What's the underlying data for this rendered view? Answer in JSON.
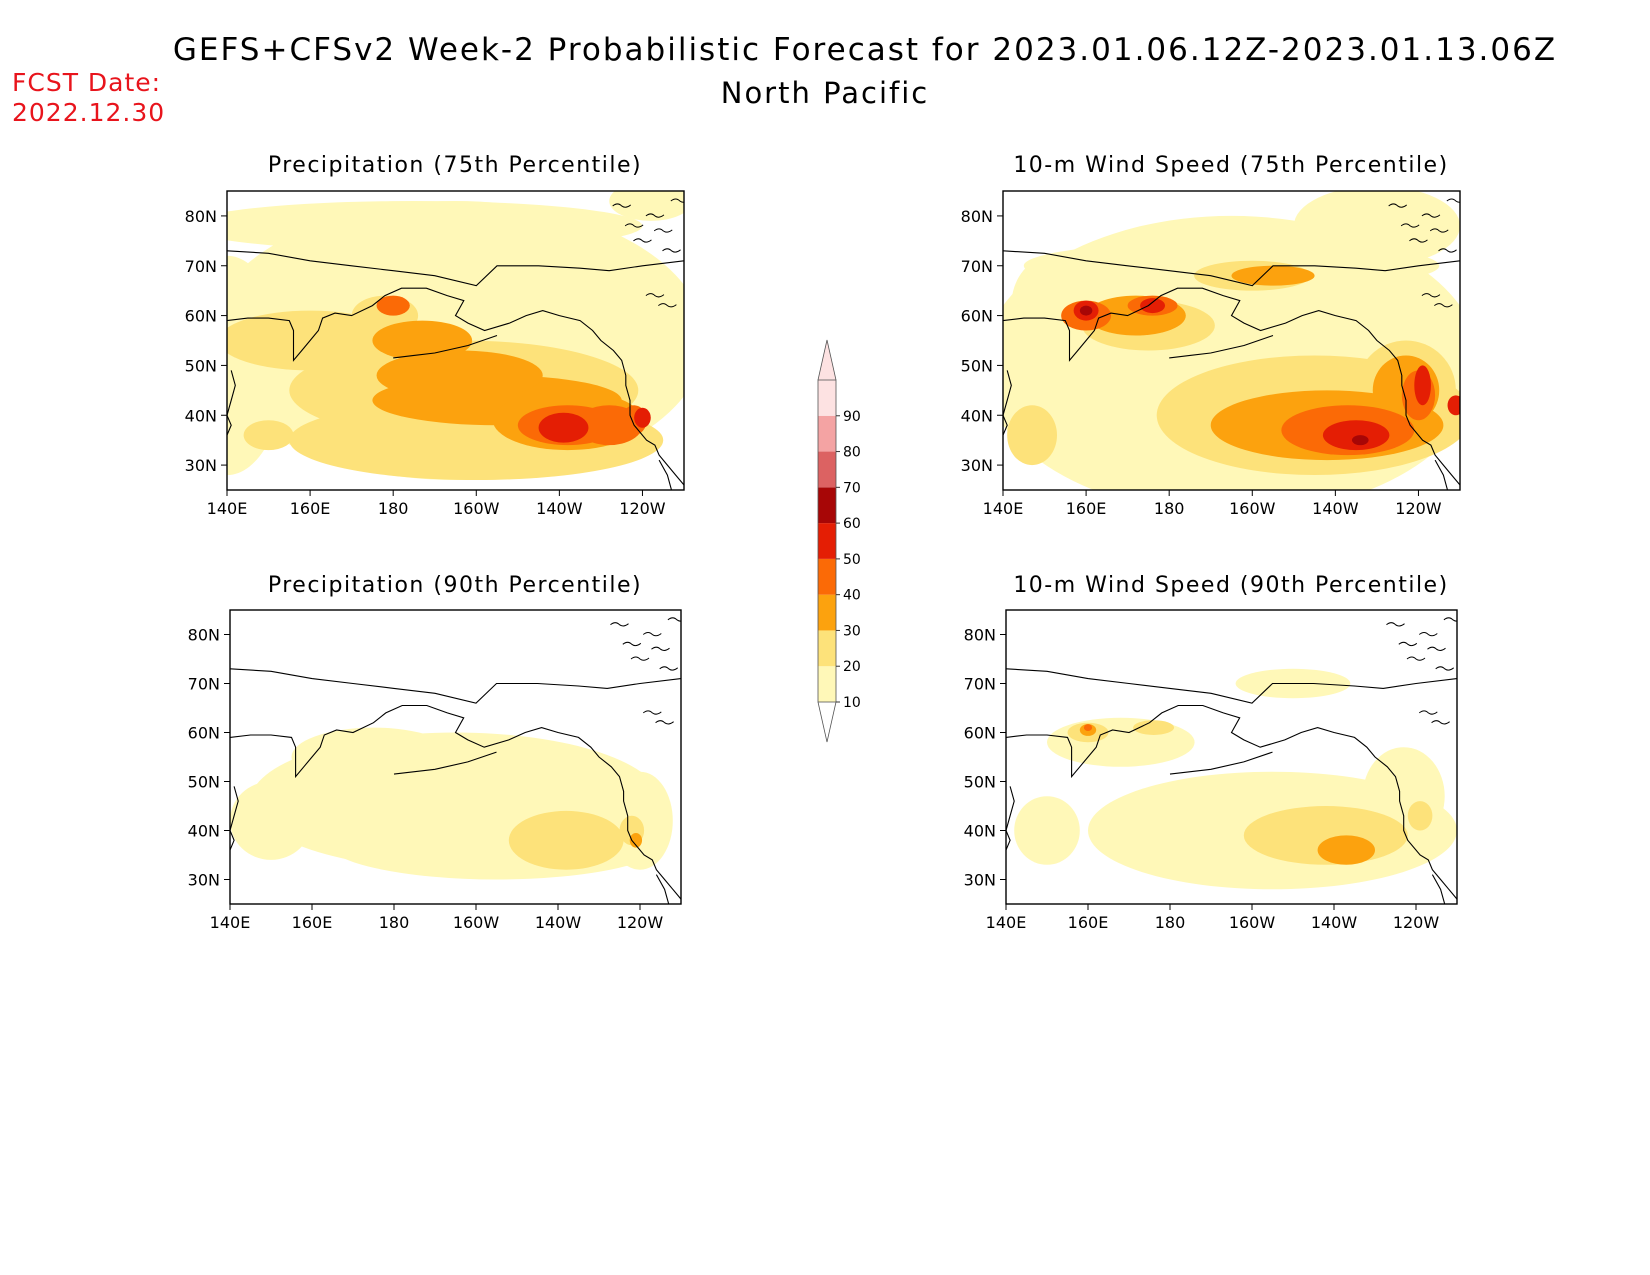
{
  "header": {
    "title": "GEFS+CFSv2 Week-2 Probabilistic Forecast for 2023.01.06.12Z-2023.01.13.06Z",
    "subtitle": "North Pacific",
    "fcst_label": "FCST Date:",
    "fcst_date": "2022.12.30"
  },
  "axes": {
    "lat_ticks": [
      "80N",
      "70N",
      "60N",
      "50N",
      "40N",
      "30N"
    ],
    "lat_values": [
      80,
      70,
      60,
      50,
      40,
      30
    ],
    "lon_ticks": [
      "140E",
      "160E",
      "180",
      "160W",
      "140W",
      "120W"
    ],
    "lon_values": [
      140,
      160,
      180,
      200,
      220,
      240
    ],
    "lon_range": [
      140,
      250
    ],
    "lat_range": [
      25,
      85
    ]
  },
  "legend": {
    "levels": [
      "10",
      "20",
      "30",
      "40",
      "50",
      "60",
      "70",
      "80",
      "90"
    ],
    "colors": [
      "#fff8b8",
      "#fde27a",
      "#fca20e",
      "#fb6a06",
      "#e41e04",
      "#a70606",
      "#dc6262",
      "#f4a3a3",
      "#fde2e2"
    ]
  },
  "colors": {
    "coast": "#000000",
    "title_red": "#e8141c"
  },
  "panels": [
    {
      "title": "Precipitation (75th Percentile)",
      "fields": [
        {
          "level": 1,
          "blobs": [
            [
              195,
              55,
              60,
              28
            ],
            [
              140,
              50,
              14,
              22
            ],
            [
              242,
              83,
              10,
              4
            ],
            [
              185,
              78,
              55,
              5
            ]
          ]
        },
        {
          "level": 2,
          "blobs": [
            [
              160,
              55,
              22,
              6
            ],
            [
              178,
              60,
              8,
              4
            ],
            [
              197,
              45,
              42,
              10
            ],
            [
              150,
              36,
              6,
              3
            ],
            [
              200,
              35,
              45,
              8
            ],
            [
              222,
              37,
              18,
              8
            ]
          ]
        },
        {
          "level": 3,
          "blobs": [
            [
              205,
              43,
              30,
              5
            ],
            [
              187,
              55,
              12,
              4
            ],
            [
              222,
              39,
              18,
              6
            ],
            [
              196,
              48,
              20,
              5
            ]
          ]
        },
        {
          "level": 4,
          "blobs": [
            [
              222,
              38,
              12,
              4
            ],
            [
              238,
              39,
              3,
              3
            ],
            [
              180,
              62,
              4,
              2
            ],
            [
              232,
              38,
              8,
              4
            ]
          ]
        },
        {
          "level": 5,
          "blobs": [
            [
              221,
              37.5,
              6,
              3
            ],
            [
              240,
              39.5,
              2,
              2
            ]
          ]
        }
      ]
    },
    {
      "title": "10-m Wind Speed (75th Percentile)",
      "fields": [
        {
          "level": 1,
          "blobs": [
            [
              195,
              50,
              60,
              30
            ],
            [
              152,
              62,
              10,
              10
            ],
            [
              230,
              78,
              20,
              8
            ],
            [
              195,
              70,
              50,
              5
            ]
          ]
        },
        {
          "level": 2,
          "blobs": [
            [
              215,
              40,
              38,
              12
            ],
            [
              175,
              58,
              16,
              5
            ],
            [
              200,
              68,
              14,
              3
            ],
            [
              237,
              45,
              12,
              10
            ],
            [
              147,
              36,
              6,
              6
            ]
          ]
        },
        {
          "level": 3,
          "blobs": [
            [
              218,
              38,
              28,
              7
            ],
            [
              172,
              60,
              12,
              4
            ],
            [
              237,
              45,
              8,
              7
            ],
            [
              205,
              68,
              10,
              2
            ]
          ]
        },
        {
          "level": 4,
          "blobs": [
            [
              223,
              37,
              16,
              5
            ],
            [
              160,
              60,
              6,
              3
            ],
            [
              176,
              62,
              6,
              2
            ],
            [
              240,
              44,
              4,
              5
            ]
          ]
        },
        {
          "level": 5,
          "blobs": [
            [
              225,
              36,
              8,
              3
            ],
            [
              160,
              61,
              3,
              2
            ],
            [
              176,
              62,
              3,
              1.5
            ],
            [
              241,
              46,
              2,
              4
            ],
            [
              249,
              42,
              2,
              2
            ]
          ]
        },
        {
          "level": 6,
          "blobs": [
            [
              160,
              61,
              1.5,
              1
            ],
            [
              226,
              35,
              2,
              1
            ]
          ]
        }
      ]
    },
    {
      "title": "Precipitation (90th Percentile)",
      "fields": [
        {
          "level": 1,
          "blobs": [
            [
              195,
              46,
              50,
              14
            ],
            [
              175,
              55,
              20,
              6
            ],
            [
              205,
              38,
              42,
              8
            ],
            [
              150,
              42,
              10,
              8
            ],
            [
              240,
              42,
              8,
              10
            ]
          ]
        },
        {
          "level": 2,
          "blobs": [
            [
              222,
              38,
              14,
              6
            ],
            [
              238,
              40,
              3,
              3
            ]
          ]
        },
        {
          "level": 3,
          "blobs": [
            [
              239,
              38,
              1.5,
              1.5
            ]
          ]
        }
      ]
    },
    {
      "title": "10-m Wind Speed (90th Percentile)",
      "fields": [
        {
          "level": 1,
          "blobs": [
            [
              205,
              40,
              45,
              12
            ],
            [
              210,
              70,
              14,
              3
            ],
            [
              168,
              58,
              18,
              5
            ],
            [
              237,
              47,
              10,
              10
            ],
            [
              150,
              40,
              8,
              7
            ]
          ]
        },
        {
          "level": 2,
          "blobs": [
            [
              218,
              39,
              20,
              6
            ],
            [
              160,
              60,
              5,
              2
            ],
            [
              176,
              61,
              5,
              1.5
            ],
            [
              241,
              43,
              3,
              3
            ]
          ]
        },
        {
          "level": 3,
          "blobs": [
            [
              223,
              36,
              7,
              3
            ],
            [
              160,
              60.5,
              2,
              1.2
            ]
          ]
        },
        {
          "level": 4,
          "blobs": [
            [
              160,
              61,
              1,
              0.7
            ]
          ]
        }
      ]
    }
  ]
}
